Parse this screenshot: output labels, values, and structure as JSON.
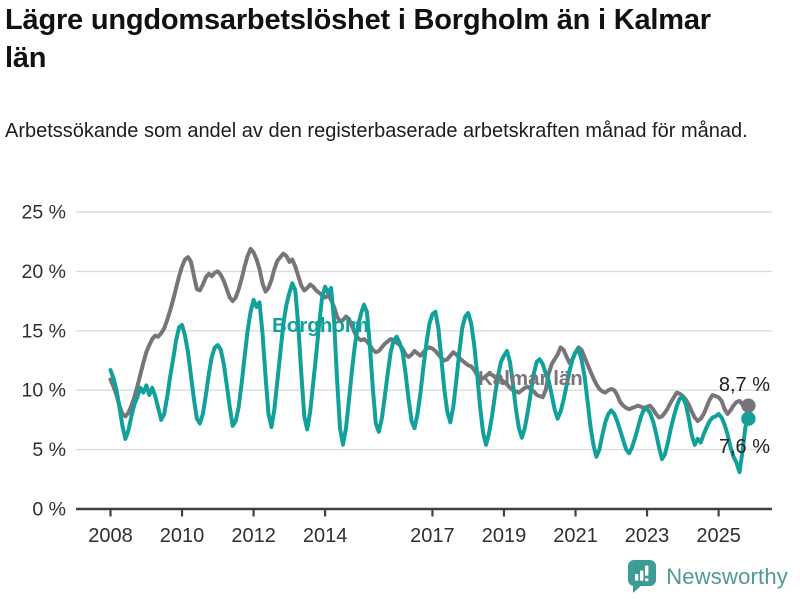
{
  "header": {
    "title": "Lägre ungdomsarbetslöshet i Borgholm än i Kalmar län",
    "subtitle": "Arbetssökande som andel av den registerbaserade arbetskraften månad för månad."
  },
  "footer": {
    "brand": "Newsworthy",
    "logo_icon": "newsworthy-speech-bubble-bar-chart-icon"
  },
  "colors": {
    "borgholm": "#12a19a",
    "kalmar": "#77757a",
    "grid": "#dcdcdc",
    "axis": "#404045",
    "tick_text": "#2f2f2f",
    "end_label_text": "#222222",
    "brand": "#4f9a93",
    "background": "#ffffff"
  },
  "chart_data": {
    "type": "line",
    "title": "Lägre ungdomsarbetslöshet i Borgholm än i Kalmar län",
    "subtitle": "Arbetssökande som andel av den registerbaserade arbetskraften månad för månad.",
    "xlabel": "",
    "ylabel": "",
    "ylim": [
      0,
      25
    ],
    "grid": true,
    "legend_position": "inline-labels-on-lines",
    "x_unit": "month",
    "x_start": "2008-01",
    "x_end": "2025-11",
    "y_ticks": [
      "0 %",
      "5 %",
      "10 %",
      "15 %",
      "20 %",
      "25 %"
    ],
    "y_tick_values": [
      0,
      5,
      10,
      15,
      20,
      25
    ],
    "x_ticks": [
      2008,
      2010,
      2012,
      2014,
      2017,
      2019,
      2021,
      2023,
      2025
    ],
    "series": [
      {
        "name": "Kalmar län",
        "color": "#77757a",
        "end_label": "8,7 %",
        "end_value": 8.7,
        "values": [
          10.9,
          10.3,
          9.6,
          8.7,
          8.0,
          7.8,
          8.1,
          8.7,
          9.4,
          10.3,
          11.3,
          12.3,
          13.2,
          13.8,
          14.3,
          14.6,
          14.5,
          14.8,
          15.2,
          15.9,
          16.7,
          17.6,
          18.6,
          19.6,
          20.4,
          21.0,
          21.2,
          20.8,
          19.6,
          18.5,
          18.4,
          18.9,
          19.5,
          19.8,
          19.6,
          19.9,
          20.0,
          19.7,
          19.2,
          18.5,
          17.8,
          17.5,
          17.8,
          18.5,
          19.4,
          20.4,
          21.3,
          21.9,
          21.6,
          21.0,
          20.2,
          19.0,
          18.3,
          18.6,
          19.3,
          20.2,
          20.9,
          21.2,
          21.5,
          21.3,
          20.8,
          21.0,
          20.4,
          19.6,
          18.8,
          18.4,
          18.6,
          18.9,
          18.7,
          18.4,
          18.2,
          18.0,
          17.8,
          18.0,
          17.6,
          17.0,
          16.2,
          15.8,
          15.9,
          16.2,
          16.0,
          15.4,
          14.8,
          14.4,
          14.2,
          14.3,
          14.1,
          13.8,
          13.4,
          13.2,
          13.3,
          13.6,
          13.9,
          14.1,
          14.3,
          14.2,
          14.0,
          13.8,
          13.5,
          13.0,
          12.8,
          13.0,
          13.3,
          13.1,
          12.9,
          13.2,
          13.5,
          13.6,
          13.5,
          13.3,
          13.0,
          12.7,
          12.5,
          12.6,
          12.9,
          13.2,
          13.0,
          12.7,
          12.5,
          12.3,
          12.1,
          12.0,
          11.7,
          11.3,
          10.9,
          11.0,
          11.2,
          11.4,
          11.3,
          11.1,
          11.0,
          10.9,
          10.7,
          10.5,
          10.2,
          10.0,
          9.9,
          9.8,
          10.0,
          10.2,
          10.3,
          10.1,
          9.9,
          9.6,
          9.5,
          9.4,
          10.0,
          11.4,
          12.2,
          12.6,
          13.0,
          13.6,
          13.4,
          12.8,
          12.3,
          12.6,
          13.2,
          13.6,
          13.4,
          12.8,
          12.2,
          11.6,
          11.0,
          10.5,
          10.1,
          9.9,
          9.8,
          10.0,
          10.1,
          10.0,
          9.6,
          9.0,
          8.7,
          8.5,
          8.4,
          8.5,
          8.6,
          8.7,
          8.6,
          8.5,
          8.6,
          8.7,
          8.4,
          8.0,
          7.7,
          7.8,
          8.1,
          8.5,
          9.0,
          9.4,
          9.8,
          9.7,
          9.5,
          9.2,
          8.8,
          8.2,
          7.7,
          7.4,
          7.6,
          8.0,
          8.6,
          9.2,
          9.6,
          9.5,
          9.4,
          9.1,
          8.4,
          8.0,
          8.3,
          8.7,
          9.0,
          9.1,
          8.8,
          8.5,
          8.7
        ]
      },
      {
        "name": "Borgholm",
        "color": "#12a19a",
        "end_label": "7,6 %",
        "end_value": 7.6,
        "values": [
          11.7,
          11.0,
          10.0,
          8.6,
          7.0,
          5.9,
          6.6,
          7.8,
          8.8,
          9.4,
          10.2,
          9.8,
          10.4,
          9.6,
          10.2,
          9.5,
          8.5,
          7.5,
          8.0,
          9.4,
          11.1,
          12.6,
          14.2,
          15.3,
          15.5,
          14.6,
          13.2,
          11.2,
          9.2,
          7.6,
          7.2,
          8.0,
          9.6,
          11.4,
          12.8,
          13.6,
          13.8,
          13.4,
          12.2,
          10.4,
          8.6,
          7.0,
          7.4,
          8.6,
          10.6,
          12.8,
          15.0,
          16.6,
          17.6,
          17.0,
          17.4,
          14.8,
          11.2,
          8.0,
          6.9,
          8.4,
          10.8,
          13.2,
          15.6,
          17.2,
          18.2,
          19.0,
          18.4,
          15.4,
          11.4,
          7.8,
          6.7,
          8.2,
          10.6,
          13.0,
          15.6,
          17.8,
          18.7,
          18.2,
          18.6,
          15.8,
          11.0,
          6.8,
          5.4,
          6.8,
          9.2,
          11.6,
          13.8,
          15.4,
          16.4,
          17.2,
          16.6,
          13.8,
          10.2,
          7.2,
          6.5,
          7.6,
          9.4,
          11.4,
          13.2,
          14.2,
          14.5,
          14.0,
          13.2,
          11.4,
          9.2,
          7.4,
          6.8,
          8.0,
          9.8,
          12.0,
          14.0,
          15.6,
          16.4,
          16.6,
          15.2,
          12.6,
          10.0,
          8.2,
          7.3,
          8.6,
          10.8,
          13.2,
          15.2,
          16.2,
          16.5,
          15.6,
          13.8,
          11.4,
          8.6,
          6.4,
          5.4,
          6.4,
          7.8,
          9.6,
          11.2,
          12.4,
          12.9,
          13.3,
          12.4,
          10.6,
          8.4,
          6.8,
          6.0,
          6.8,
          8.2,
          9.8,
          11.4,
          12.4,
          12.6,
          12.2,
          11.4,
          10.8,
          9.6,
          8.4,
          7.6,
          8.2,
          9.2,
          10.4,
          11.6,
          12.6,
          13.2,
          13.4,
          12.6,
          11.2,
          9.2,
          7.0,
          5.4,
          4.4,
          5.0,
          6.2,
          7.3,
          8.0,
          8.3,
          8.0,
          7.4,
          6.6,
          5.8,
          5.0,
          4.7,
          5.2,
          6.0,
          6.9,
          7.8,
          8.4,
          8.4,
          8.1,
          7.4,
          6.4,
          5.2,
          4.2,
          4.6,
          5.6,
          6.8,
          7.8,
          8.7,
          9.3,
          9.4,
          8.8,
          7.6,
          6.2,
          5.4,
          5.9,
          5.6,
          6.3,
          6.9,
          7.4,
          7.7,
          7.8,
          8.0,
          7.7,
          7.1,
          6.3,
          5.2,
          4.4,
          3.9,
          3.1,
          4.8,
          6.9,
          7.6
        ]
      }
    ]
  }
}
